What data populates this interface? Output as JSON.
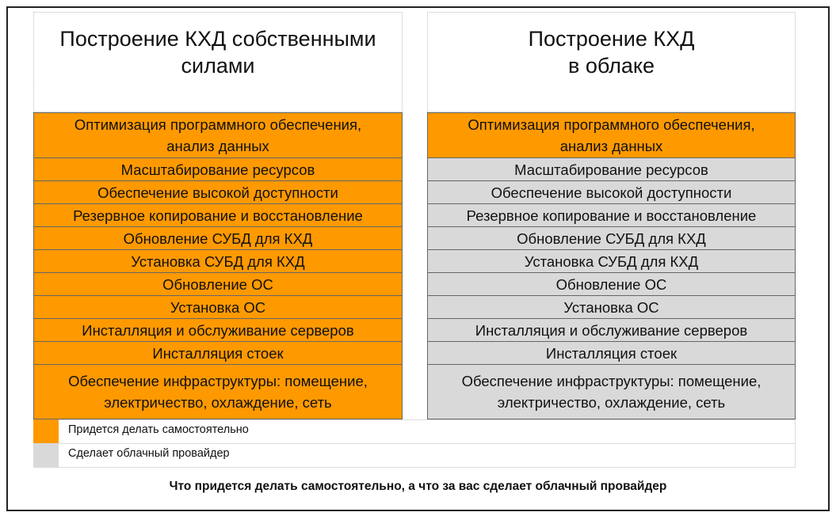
{
  "header": {
    "left": "Построение КХД собственными\nсилами",
    "right": "Построение КХД\nв облаке"
  },
  "rows": [
    {
      "text": "Оптимизация программного обеспечения,\nанализ данных",
      "left_color": "#ff9900",
      "right_color": "#ff9900"
    },
    {
      "text": "Масштабирование ресурсов",
      "left_color": "#ff9900",
      "right_color": "#d9d9d9"
    },
    {
      "text": "Обеспечение высокой доступности",
      "left_color": "#ff9900",
      "right_color": "#d9d9d9"
    },
    {
      "text": "Резервное копирование и восстановление",
      "left_color": "#ff9900",
      "right_color": "#d9d9d9"
    },
    {
      "text": "Обновление СУБД для КХД",
      "left_color": "#ff9900",
      "right_color": "#d9d9d9"
    },
    {
      "text": "Установка СУБД для КХД",
      "left_color": "#ff9900",
      "right_color": "#d9d9d9"
    },
    {
      "text": "Обновление ОС",
      "left_color": "#ff9900",
      "right_color": "#d9d9d9"
    },
    {
      "text": "Установка ОС",
      "left_color": "#ff9900",
      "right_color": "#d9d9d9"
    },
    {
      "text": "Инсталляция и обслуживание серверов",
      "left_color": "#ff9900",
      "right_color": "#d9d9d9"
    },
    {
      "text": "Инсталляция стоек",
      "left_color": "#ff9900",
      "right_color": "#d9d9d9"
    },
    {
      "text": "Обеспечение инфраструктуры: помещение,\nэлектричество, охлаждение, сеть",
      "left_color": "#ff9900",
      "right_color": "#d9d9d9"
    }
  ],
  "legend": [
    {
      "label": "Придется делать самостоятельно",
      "color": "#ff9900"
    },
    {
      "label": "Сделает облачный провайдер",
      "color": "#d9d9d9"
    }
  ],
  "caption": "Что придется делать самостоятельно, а что за вас сделает облачный провайдер"
}
